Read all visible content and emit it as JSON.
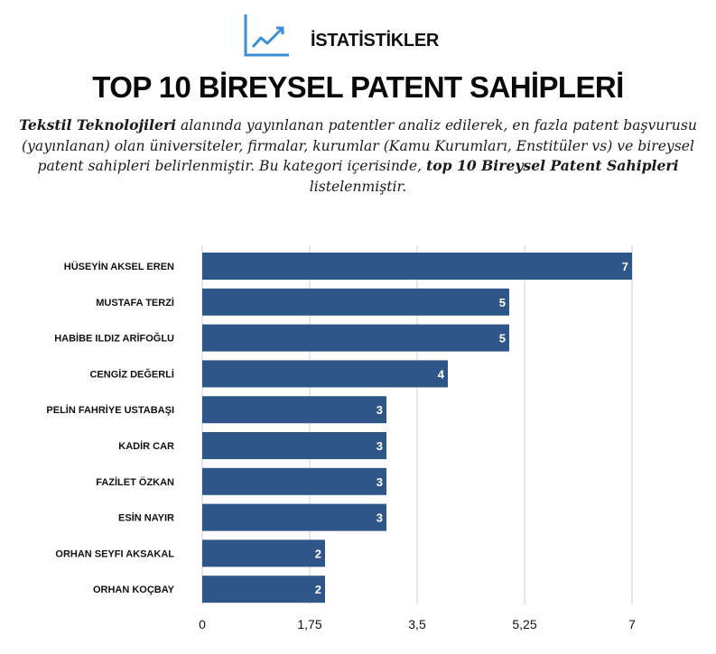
{
  "header": {
    "section_label": "İSTATİSTİKLER",
    "icon": "line-chart-trend-icon",
    "accent_color": "#3b8fd6"
  },
  "page_title": "TOP 10 BİREYSEL PATENT SAHİPLERİ",
  "intro": {
    "part1": "Tekstil Teknolojileri",
    "part2": " alanında yayınlanan patentler analiz edilerek, en fazla patent başvurusu (yayınlanan) olan üniversiteler, firmalar, kurumlar (Kamu Kurumları, Enstitüler vs) ve bireysel patent sahipleri belirlenmiştir. Bu kategori içerisinde, ",
    "part3": "top 10 Bireysel Patent Sahipleri",
    "part4": " listelenmiştir."
  },
  "chart_data": {
    "type": "bar",
    "orientation": "horizontal",
    "categories": [
      "HÜSEYİN AKSEL EREN",
      "MUSTAFA TERZİ",
      "HABİBE ILDIZ ARİFOĞLU",
      "CENGİZ DEĞERLİ",
      "PELİN FAHRİYE USTABAŞI",
      "KADİR CAR",
      "FAZİLET ÖZKAN",
      "ESİN NAYIR",
      "ORHAN SEYFI AKSAKAL",
      "ORHAN KOÇBAY"
    ],
    "values": [
      7,
      5,
      5,
      4,
      3,
      3,
      3,
      3,
      2,
      2
    ],
    "value_labels": [
      "7",
      "5",
      "5",
      "4",
      "3",
      "3",
      "3",
      "3",
      "2",
      "2"
    ],
    "xlim": [
      0,
      7
    ],
    "xticks": [
      0,
      1.75,
      3.5,
      5.25,
      7
    ],
    "xtick_labels": [
      "0",
      "1,75",
      "3,5",
      "5,25",
      "7"
    ],
    "grid": true,
    "bar_color": "#2f5688"
  }
}
